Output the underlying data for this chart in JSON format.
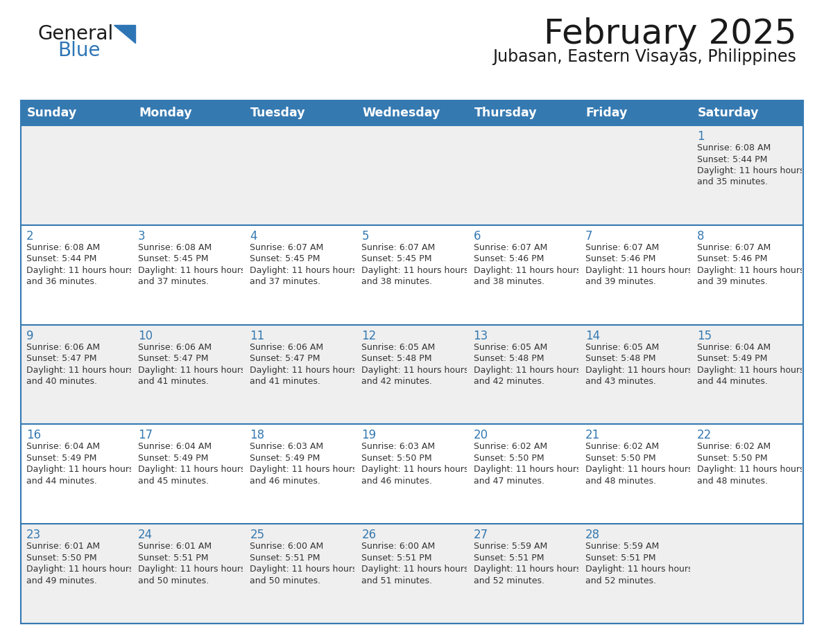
{
  "title": "February 2025",
  "subtitle": "Jubasan, Eastern Visayas, Philippines",
  "header_color": "#3579B1",
  "header_text_color": "#FFFFFF",
  "header_days": [
    "Sunday",
    "Monday",
    "Tuesday",
    "Wednesday",
    "Thursday",
    "Friday",
    "Saturday"
  ],
  "background_color": "#FFFFFF",
  "cell_bg_row0": "#EFEFEF",
  "cell_bg_row1": "#FFFFFF",
  "cell_bg_row2": "#EFEFEF",
  "cell_bg_row3": "#FFFFFF",
  "cell_bg_row4": "#EFEFEF",
  "grid_color": "#3579B1",
  "day_number_color": "#3579B1",
  "text_color": "#333333",
  "logo_color1": "#1a1a1a",
  "logo_color2": "#2E75B6",
  "logo_triangle_color": "#2E75B6",
  "calendar_data": [
    [
      null,
      null,
      null,
      null,
      null,
      null,
      {
        "day": 1,
        "sunrise": "6:08 AM",
        "sunset": "5:44 PM",
        "daylight": "11 hours and 35 minutes"
      }
    ],
    [
      {
        "day": 2,
        "sunrise": "6:08 AM",
        "sunset": "5:44 PM",
        "daylight": "11 hours and 36 minutes"
      },
      {
        "day": 3,
        "sunrise": "6:08 AM",
        "sunset": "5:45 PM",
        "daylight": "11 hours and 37 minutes"
      },
      {
        "day": 4,
        "sunrise": "6:07 AM",
        "sunset": "5:45 PM",
        "daylight": "11 hours and 37 minutes"
      },
      {
        "day": 5,
        "sunrise": "6:07 AM",
        "sunset": "5:45 PM",
        "daylight": "11 hours and 38 minutes"
      },
      {
        "day": 6,
        "sunrise": "6:07 AM",
        "sunset": "5:46 PM",
        "daylight": "11 hours and 38 minutes"
      },
      {
        "day": 7,
        "sunrise": "6:07 AM",
        "sunset": "5:46 PM",
        "daylight": "11 hours and 39 minutes"
      },
      {
        "day": 8,
        "sunrise": "6:07 AM",
        "sunset": "5:46 PM",
        "daylight": "11 hours and 39 minutes"
      }
    ],
    [
      {
        "day": 9,
        "sunrise": "6:06 AM",
        "sunset": "5:47 PM",
        "daylight": "11 hours and 40 minutes"
      },
      {
        "day": 10,
        "sunrise": "6:06 AM",
        "sunset": "5:47 PM",
        "daylight": "11 hours and 41 minutes"
      },
      {
        "day": 11,
        "sunrise": "6:06 AM",
        "sunset": "5:47 PM",
        "daylight": "11 hours and 41 minutes"
      },
      {
        "day": 12,
        "sunrise": "6:05 AM",
        "sunset": "5:48 PM",
        "daylight": "11 hours and 42 minutes"
      },
      {
        "day": 13,
        "sunrise": "6:05 AM",
        "sunset": "5:48 PM",
        "daylight": "11 hours and 42 minutes"
      },
      {
        "day": 14,
        "sunrise": "6:05 AM",
        "sunset": "5:48 PM",
        "daylight": "11 hours and 43 minutes"
      },
      {
        "day": 15,
        "sunrise": "6:04 AM",
        "sunset": "5:49 PM",
        "daylight": "11 hours and 44 minutes"
      }
    ],
    [
      {
        "day": 16,
        "sunrise": "6:04 AM",
        "sunset": "5:49 PM",
        "daylight": "11 hours and 44 minutes"
      },
      {
        "day": 17,
        "sunrise": "6:04 AM",
        "sunset": "5:49 PM",
        "daylight": "11 hours and 45 minutes"
      },
      {
        "day": 18,
        "sunrise": "6:03 AM",
        "sunset": "5:49 PM",
        "daylight": "11 hours and 46 minutes"
      },
      {
        "day": 19,
        "sunrise": "6:03 AM",
        "sunset": "5:50 PM",
        "daylight": "11 hours and 46 minutes"
      },
      {
        "day": 20,
        "sunrise": "6:02 AM",
        "sunset": "5:50 PM",
        "daylight": "11 hours and 47 minutes"
      },
      {
        "day": 21,
        "sunrise": "6:02 AM",
        "sunset": "5:50 PM",
        "daylight": "11 hours and 48 minutes"
      },
      {
        "day": 22,
        "sunrise": "6:02 AM",
        "sunset": "5:50 PM",
        "daylight": "11 hours and 48 minutes"
      }
    ],
    [
      {
        "day": 23,
        "sunrise": "6:01 AM",
        "sunset": "5:50 PM",
        "daylight": "11 hours and 49 minutes"
      },
      {
        "day": 24,
        "sunrise": "6:01 AM",
        "sunset": "5:51 PM",
        "daylight": "11 hours and 50 minutes"
      },
      {
        "day": 25,
        "sunrise": "6:00 AM",
        "sunset": "5:51 PM",
        "daylight": "11 hours and 50 minutes"
      },
      {
        "day": 26,
        "sunrise": "6:00 AM",
        "sunset": "5:51 PM",
        "daylight": "11 hours and 51 minutes"
      },
      {
        "day": 27,
        "sunrise": "5:59 AM",
        "sunset": "5:51 PM",
        "daylight": "11 hours and 52 minutes"
      },
      {
        "day": 28,
        "sunrise": "5:59 AM",
        "sunset": "5:51 PM",
        "daylight": "11 hours and 52 minutes"
      },
      null
    ]
  ]
}
